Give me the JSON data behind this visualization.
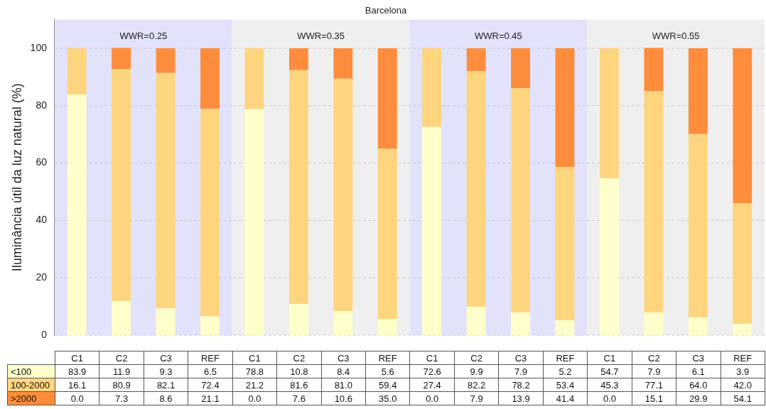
{
  "chart_data": {
    "type": "bar",
    "title": "Barcelona",
    "ylabel": "Iluminância útil da luz natural (%)",
    "categories": [
      "C1",
      "C2",
      "C3",
      "REF",
      "C1",
      "C2",
      "C3",
      "REF",
      "C1",
      "C2",
      "C3",
      "REF",
      "C1",
      "C2",
      "C3",
      "REF"
    ],
    "stacked": true,
    "grid": "y",
    "ylim": [
      0,
      110
    ],
    "yticks": [
      0,
      20,
      40,
      60,
      80,
      100
    ],
    "series": [
      {
        "name": "<100",
        "color": "#ffffcc",
        "values": [
          83.9,
          11.9,
          9.3,
          6.5,
          78.8,
          10.8,
          8.4,
          5.6,
          72.6,
          9.9,
          7.9,
          5.2,
          54.7,
          7.9,
          6.1,
          3.9
        ],
        "value_labels": [
          "83.9",
          "11.9",
          "9.3",
          "6.5",
          "78.8",
          "10.8",
          "8.4",
          "5.6",
          "72.6",
          "9.9",
          "7.9",
          "5.2",
          "54.7",
          "7.9",
          "6.1",
          "3.9"
        ]
      },
      {
        "name": "100-2000",
        "color": "#fed57f",
        "values": [
          16.1,
          80.9,
          82.1,
          72.4,
          21.2,
          81.6,
          81.0,
          59.4,
          27.4,
          82.2,
          78.2,
          53.4,
          45.3,
          77.1,
          64.0,
          42.0
        ],
        "value_labels": [
          "16.1",
          "80.9",
          "82.1",
          "72.4",
          "21.2",
          "81.6",
          "81.0",
          "59.4",
          "27.4",
          "82.2",
          "78.2",
          "53.4",
          "45.3",
          "77.1",
          "64.0",
          "42.0"
        ]
      },
      {
        "name": ">2000",
        "color": "#fd8d3c",
        "values": [
          0.0,
          7.3,
          8.6,
          21.1,
          0.0,
          7.6,
          10.6,
          35.0,
          0.0,
          7.9,
          13.9,
          41.4,
          0.0,
          15.1,
          29.9,
          54.1
        ],
        "value_labels": [
          "0.0",
          "7.3",
          "8.6",
          "21.1",
          "0.0",
          "7.6",
          "10.6",
          "35.0",
          "0.0",
          "7.9",
          "13.9",
          "41.4",
          "0.0",
          "15.1",
          "29.9",
          "54.1"
        ]
      }
    ],
    "annotations": [
      "WWR=0.25",
      "WWR=0.35",
      "WWR=0.45",
      "WWR=0.55"
    ]
  }
}
